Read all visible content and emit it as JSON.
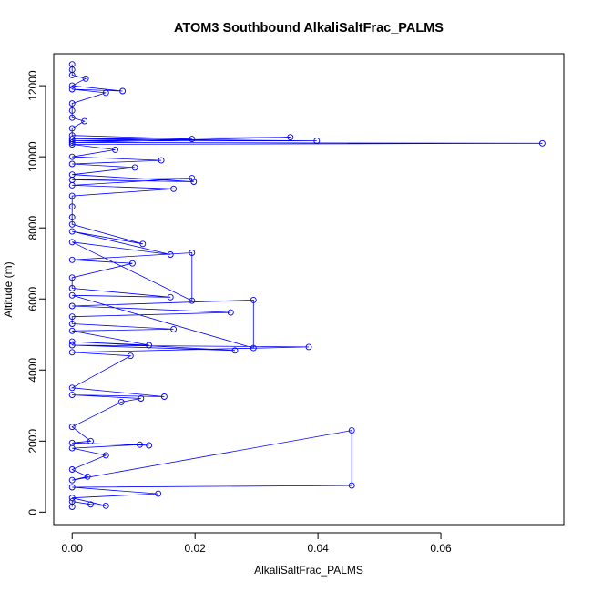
{
  "chart_data": {
    "type": "line",
    "title": "ATOM3 Southbound AlkaliSaltFrac_PALMS",
    "xlabel": "AlkaliSaltFrac_PALMS",
    "ylabel": "Altitude (m)",
    "xlim": [
      -0.003,
      0.08
    ],
    "ylim": [
      -350,
      12900
    ],
    "xticks": [
      0.0,
      0.02,
      0.04,
      0.06
    ],
    "xtick_labels": [
      "0.00",
      "0.02",
      "0.04",
      "0.06"
    ],
    "yticks": [
      0,
      2000,
      4000,
      6000,
      8000,
      10000,
      12000
    ],
    "ytick_labels": [
      "0",
      "2000",
      "4000",
      "6000",
      "8000",
      "10000",
      "12000"
    ],
    "grid": false,
    "legend": "none",
    "series": [
      {
        "color": "#0000ff",
        "marker": "open-circle",
        "points": [
          [
            0.0,
            150
          ],
          [
            0.0,
            300
          ],
          [
            0.003,
            220
          ],
          [
            0.0055,
            180
          ],
          [
            0.0,
            400
          ],
          [
            0.014,
            520
          ],
          [
            0.0,
            700
          ],
          [
            0.0455,
            750
          ],
          [
            0.0455,
            2300
          ],
          [
            0.0,
            900
          ],
          [
            0.0025,
            1000
          ],
          [
            0.0,
            1200
          ],
          [
            0.0055,
            1600
          ],
          [
            0.0,
            1800
          ],
          [
            0.011,
            1900
          ],
          [
            0.0125,
            1880
          ],
          [
            0.0,
            1950
          ],
          [
            0.003,
            2000
          ],
          [
            0.0,
            2400
          ],
          [
            0.008,
            3100
          ],
          [
            0.0112,
            3200
          ],
          [
            0.0,
            3300
          ],
          [
            0.015,
            3250
          ],
          [
            0.0,
            3500
          ],
          [
            0.0095,
            4400
          ],
          [
            0.0,
            4500
          ],
          [
            0.0385,
            4650
          ],
          [
            0.0,
            4700
          ],
          [
            0.0265,
            4550
          ],
          [
            0.0,
            4800
          ],
          [
            0.0125,
            4700
          ],
          [
            0.0,
            5100
          ],
          [
            0.0165,
            5150
          ],
          [
            0.0,
            5300
          ],
          [
            0.0,
            5500
          ],
          [
            0.0258,
            5620
          ],
          [
            0.0,
            5800
          ],
          [
            0.0295,
            5970
          ],
          [
            0.0295,
            4620
          ],
          [
            0.0,
            6100
          ],
          [
            0.016,
            6050
          ],
          [
            0.0,
            6300
          ],
          [
            0.0,
            6600
          ],
          [
            0.0098,
            7000
          ],
          [
            0.0,
            7100
          ],
          [
            0.0195,
            7300
          ],
          [
            0.0195,
            5950
          ],
          [
            0.0,
            7600
          ],
          [
            0.016,
            7250
          ],
          [
            0.0,
            7900
          ],
          [
            0.0115,
            7550
          ],
          [
            0.0,
            8100
          ],
          [
            0.0,
            8300
          ],
          [
            0.0,
            8600
          ],
          [
            0.0,
            8900
          ],
          [
            0.0165,
            9100
          ],
          [
            0.0,
            9200
          ],
          [
            0.0195,
            9400
          ],
          [
            0.0,
            9350
          ],
          [
            0.0198,
            9300
          ],
          [
            0.0,
            9500
          ],
          [
            0.0102,
            9700
          ],
          [
            0.0,
            9800
          ],
          [
            0.0145,
            9900
          ],
          [
            0.0,
            10000
          ],
          [
            0.007,
            10200
          ],
          [
            0.0,
            10350
          ],
          [
            0.0765,
            10380
          ],
          [
            0.0,
            10400
          ],
          [
            0.0355,
            10550
          ],
          [
            0.0,
            10500
          ],
          [
            0.0398,
            10450
          ],
          [
            0.0,
            10450
          ],
          [
            0.0195,
            10500
          ],
          [
            0.0,
            10600
          ],
          [
            0.0,
            10800
          ],
          [
            0.002,
            11000
          ],
          [
            0.0,
            11100
          ],
          [
            0.0,
            11300
          ],
          [
            0.0,
            11500
          ],
          [
            0.0055,
            11800
          ],
          [
            0.0,
            11900
          ],
          [
            0.0082,
            11850
          ],
          [
            0.0,
            12000
          ],
          [
            0.0022,
            12200
          ],
          [
            0.0,
            12300
          ],
          [
            0.0,
            12450
          ],
          [
            0.0,
            12600
          ]
        ]
      }
    ]
  }
}
